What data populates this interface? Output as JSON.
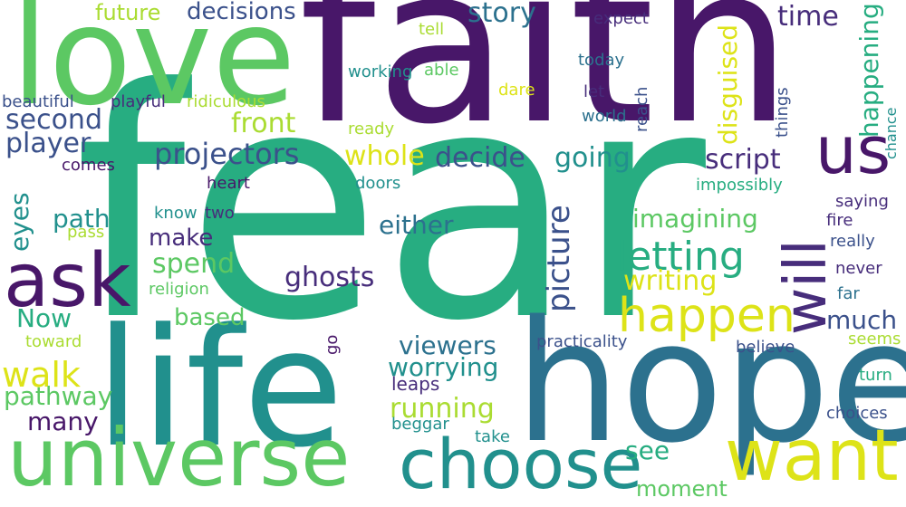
{
  "palette": {
    "dark_purple": "#481769",
    "purple": "#472d7b",
    "indigo": "#3b518b",
    "blue": "#2c718e",
    "teal": "#21908d",
    "green_teal": "#27ad81",
    "green": "#5cc863",
    "lime": "#aadc32",
    "yellow": "#dde318"
  },
  "words": [
    {
      "text": "fear"
    },
    {
      "text": "faith"
    },
    {
      "text": "love"
    },
    {
      "text": "hope"
    },
    {
      "text": "life"
    },
    {
      "text": "universe"
    },
    {
      "text": "choose"
    },
    {
      "text": "want"
    },
    {
      "text": "ask"
    },
    {
      "text": "us"
    },
    {
      "text": "will"
    },
    {
      "text": "happen"
    },
    {
      "text": "letting"
    },
    {
      "text": "story"
    },
    {
      "text": "decisions"
    },
    {
      "text": "future"
    },
    {
      "text": "time"
    },
    {
      "text": "happening"
    },
    {
      "text": "disguised"
    },
    {
      "text": "projectors"
    },
    {
      "text": "second"
    },
    {
      "text": "player"
    },
    {
      "text": "front"
    },
    {
      "text": "whole"
    },
    {
      "text": "decide"
    },
    {
      "text": "going"
    },
    {
      "text": "script"
    },
    {
      "text": "picture"
    },
    {
      "text": "imagining"
    },
    {
      "text": "writing"
    },
    {
      "text": "ghosts"
    },
    {
      "text": "spend"
    },
    {
      "text": "make"
    },
    {
      "text": "path"
    },
    {
      "text": "either"
    },
    {
      "text": "eyes"
    },
    {
      "text": "Now"
    },
    {
      "text": "based"
    },
    {
      "text": "much"
    },
    {
      "text": "walk"
    },
    {
      "text": "viewers"
    },
    {
      "text": "worrying"
    },
    {
      "text": "running"
    },
    {
      "text": "pathway"
    },
    {
      "text": "many"
    },
    {
      "text": "see"
    },
    {
      "text": "moment"
    },
    {
      "text": "leaps"
    },
    {
      "text": "beggar"
    },
    {
      "text": "take"
    },
    {
      "text": "practicality"
    },
    {
      "text": "believe"
    },
    {
      "text": "seems"
    },
    {
      "text": "turn"
    },
    {
      "text": "choices"
    },
    {
      "text": "far"
    },
    {
      "text": "never"
    },
    {
      "text": "really"
    },
    {
      "text": "fire"
    },
    {
      "text": "saying"
    },
    {
      "text": "chance"
    },
    {
      "text": "impossibly"
    },
    {
      "text": "things"
    },
    {
      "text": "reach"
    },
    {
      "text": "world"
    },
    {
      "text": "let"
    },
    {
      "text": "today"
    },
    {
      "text": "expect"
    },
    {
      "text": "tell"
    },
    {
      "text": "able"
    },
    {
      "text": "working"
    },
    {
      "text": "dare"
    },
    {
      "text": "ready"
    },
    {
      "text": "beautiful"
    },
    {
      "text": "playful"
    },
    {
      "text": "ridiculous"
    },
    {
      "text": "comes"
    },
    {
      "text": "heart"
    },
    {
      "text": "doors"
    },
    {
      "text": "know"
    },
    {
      "text": "two"
    },
    {
      "text": "pass"
    },
    {
      "text": "religion"
    },
    {
      "text": "toward"
    },
    {
      "text": "go"
    }
  ]
}
